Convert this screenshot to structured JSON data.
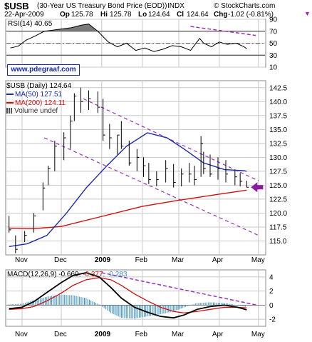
{
  "header": {
    "symbol": "$USB",
    "desc": "(30-Year US Treasury Bond Price (EOD))",
    "exchange": "INDX",
    "copyright": "© StockCharts.com",
    "date": "22-Apr-2009",
    "op_label": "Op",
    "op": "125.78",
    "hi_label": "Hi",
    "hi": "125.78",
    "lo_label": "Lo",
    "lo": "124.64",
    "cl_label": "Cl",
    "cl": "124.64",
    "chg_label": "Chg",
    "chg": "-1.02 (-0.81%)"
  },
  "watermark": "www.pdegraaf.com",
  "colors": {
    "price_bar": "#000000",
    "ma50": "#1a2aa8",
    "ma200": "#d01010",
    "trend": "#9b30c0",
    "arrow": "#8a1aa0",
    "rsi_fill": "#7a7a7a",
    "hist": "#3a8fc0",
    "grid": "#c8c8c8"
  },
  "chart_data": [
    {
      "type": "line",
      "title": "RSI(14) 40.65",
      "ylim": [
        10,
        90
      ],
      "y_ticks": [
        "10",
        "30",
        "50",
        "70",
        "90"
      ],
      "overbought": 70,
      "oversold": 30,
      "center": 50,
      "x_months": [
        "Nov",
        "Dec",
        "2009",
        "Feb",
        "Mar",
        "Apr",
        "May"
      ],
      "x": [
        "2008-10-23",
        "2008-10-29",
        "2008-11-04",
        "2008-11-11",
        "2008-11-18",
        "2008-11-25",
        "2008-12-02",
        "2008-12-09",
        "2008-12-16",
        "2008-12-22",
        "2008-12-29",
        "2009-01-06",
        "2009-01-13",
        "2009-01-20",
        "2009-01-27",
        "2009-02-03",
        "2009-02-10",
        "2009-02-17",
        "2009-02-24",
        "2009-03-03",
        "2009-03-10",
        "2009-03-17",
        "2009-03-20",
        "2009-03-26",
        "2009-04-01",
        "2009-04-07",
        "2009-04-14",
        "2009-04-20",
        "2009-04-22"
      ],
      "values": [
        42,
        45,
        55,
        62,
        70,
        72,
        74,
        76,
        80,
        82,
        70,
        52,
        44,
        50,
        38,
        42,
        36,
        40,
        46,
        44,
        38,
        58,
        50,
        44,
        52,
        48,
        50,
        44,
        40.65
      ],
      "trendline": {
        "x": [
          "2009-03-10",
          "2009-04-29"
        ],
        "y": [
          78,
          63
        ]
      }
    },
    {
      "type": "bar",
      "title": "$USB (Daily) 124.64",
      "ylim": [
        112.5,
        143.75
      ],
      "y_ticks": [
        "115.0",
        "117.5",
        "120.0",
        "122.5",
        "125.0",
        "127.5",
        "130.0",
        "132.5",
        "135.0",
        "137.5",
        "140.0",
        "142.5"
      ],
      "x_months": [
        "Nov",
        "Dec",
        "2009",
        "Feb",
        "Mar",
        "Apr",
        "May"
      ],
      "legend": [
        {
          "name": "$USB (Daily) 124.64",
          "color": "#000000"
        },
        {
          "name": "MA(50) 127.51",
          "color": "#1a2aa8"
        },
        {
          "name": "MA(200) 124.11",
          "color": "#d01010"
        },
        {
          "name": "Volume undef",
          "color": "#555555"
        }
      ],
      "ohlc": {
        "x": [
          "2008-10-22",
          "2008-10-27",
          "2008-11-03",
          "2008-11-10",
          "2008-11-17",
          "2008-11-21",
          "2008-11-26",
          "2008-12-03",
          "2008-12-08",
          "2008-12-11",
          "2008-12-16",
          "2008-12-22",
          "2008-12-29",
          "2009-01-02",
          "2009-01-07",
          "2009-01-13",
          "2009-01-16",
          "2009-01-22",
          "2009-01-28",
          "2009-02-02",
          "2009-02-06",
          "2009-02-12",
          "2009-02-19",
          "2009-02-25",
          "2009-03-03",
          "2009-03-09",
          "2009-03-13",
          "2009-03-18",
          "2009-03-20",
          "2009-03-25",
          "2009-03-31",
          "2009-04-06",
          "2009-04-13",
          "2009-04-17",
          "2009-04-22"
        ],
        "high": [
          119.5,
          116.0,
          116.8,
          120.0,
          125.5,
          128.5,
          133.0,
          134.5,
          137.5,
          141.5,
          142.5,
          142.0,
          141.8,
          140.5,
          136.0,
          134.0,
          136.5,
          133.0,
          131.5,
          130.0,
          129.0,
          127.5,
          129.5,
          128.8,
          128.0,
          129.0,
          128.5,
          133.8,
          131.0,
          130.5,
          130.0,
          129.5,
          127.6,
          127.2,
          125.8
        ],
        "low": [
          116.5,
          112.8,
          114.8,
          116.5,
          120.5,
          125.0,
          127.5,
          129.5,
          131.5,
          136.5,
          138.0,
          138.5,
          138.0,
          133.0,
          131.5,
          130.5,
          131.5,
          128.5,
          127.5,
          126.5,
          125.2,
          124.8,
          125.5,
          124.6,
          124.8,
          125.5,
          125.0,
          126.5,
          127.0,
          126.5,
          126.0,
          125.5,
          125.0,
          124.8,
          124.6
        ],
        "close": [
          117.0,
          113.5,
          116.0,
          119.5,
          124.5,
          128.0,
          132.0,
          133.5,
          136.5,
          141.0,
          140.0,
          140.5,
          139.0,
          134.0,
          133.5,
          134.0,
          132.0,
          129.0,
          130.0,
          128.5,
          126.0,
          126.0,
          128.0,
          125.5,
          127.0,
          127.0,
          126.0,
          132.5,
          128.0,
          127.0,
          128.0,
          127.0,
          126.5,
          125.7,
          124.64
        ]
      },
      "ma50": {
        "x": [
          "2008-10-22",
          "2008-11-05",
          "2008-11-20",
          "2008-12-05",
          "2008-12-20",
          "2009-01-05",
          "2009-01-20",
          "2009-02-05",
          "2009-02-20",
          "2009-03-05",
          "2009-03-20",
          "2009-04-05",
          "2009-04-20",
          "2009-04-22"
        ],
        "y": [
          114.0,
          114.5,
          116.0,
          120.0,
          124.5,
          128.5,
          132.0,
          134.4,
          133.5,
          131.5,
          129.0,
          127.8,
          127.6,
          127.51
        ]
      },
      "ma200": {
        "x": [
          "2008-10-22",
          "2008-11-10",
          "2008-12-01",
          "2009-01-01",
          "2009-02-01",
          "2009-03-01",
          "2009-04-01",
          "2009-04-22"
        ],
        "y": [
          117.3,
          117.2,
          117.6,
          119.4,
          121.2,
          122.3,
          123.4,
          124.11
        ]
      },
      "upper_trend": {
        "x": [
          "2008-12-18",
          "2009-05-01"
        ],
        "y": [
          140.5,
          125.8
        ]
      },
      "lower_trend": {
        "x": [
          "2008-11-18",
          "2009-05-01"
        ],
        "y": [
          133.5,
          116.0
        ]
      },
      "marker": {
        "x": "2009-04-22",
        "y": 124.64,
        "shape": "arrow-left"
      }
    },
    {
      "type": "line",
      "title": "MACD(12,26,9)",
      "ylim": [
        -3,
        5
      ],
      "y_ticks": [
        "-2",
        "0",
        "2",
        "4"
      ],
      "x_months": [
        "Nov",
        "Dec",
        "2009",
        "Feb",
        "Mar",
        "Apr",
        "May"
      ],
      "legend": [
        {
          "name": "MACD(12,26,9)",
          "color": "#000000"
        },
        {
          "name": "-0.660",
          "color": "#000000"
        },
        {
          "name": "-0.377",
          "color": "#d01010"
        },
        {
          "name": "-0.283",
          "color": "#3a8fc0"
        }
      ],
      "x": [
        "2008-10-22",
        "2008-11-01",
        "2008-11-10",
        "2008-11-20",
        "2008-12-01",
        "2008-12-10",
        "2008-12-20",
        "2008-12-30",
        "2009-01-08",
        "2009-01-16",
        "2009-01-26",
        "2009-02-05",
        "2009-02-15",
        "2009-02-25",
        "2009-03-05",
        "2009-03-15",
        "2009-03-25",
        "2009-04-05",
        "2009-04-15",
        "2009-04-22"
      ],
      "series": [
        {
          "values": [
            -0.5,
            -0.3,
            0.5,
            1.8,
            3.2,
            4.2,
            4.6,
            4.0,
            2.5,
            1.0,
            -0.3,
            -1.0,
            -1.6,
            -1.8,
            -1.4,
            -0.6,
            -0.2,
            0.0,
            -0.3,
            -0.66
          ]
        },
        {
          "values": [
            -0.6,
            -0.5,
            -0.2,
            0.6,
            1.7,
            2.8,
            3.6,
            3.9,
            3.6,
            2.8,
            1.6,
            0.6,
            -0.3,
            -0.9,
            -1.1,
            -0.9,
            -0.6,
            -0.3,
            -0.3,
            -0.377
          ]
        },
        {
          "values": [
            0.1,
            0.2,
            0.7,
            1.2,
            1.5,
            1.4,
            1.0,
            0.1,
            -1.1,
            -1.8,
            -1.9,
            -1.6,
            -1.3,
            -0.9,
            -0.3,
            0.3,
            0.4,
            0.3,
            0.0,
            -0.283
          ]
        }
      ],
      "trendline": {
        "x": [
          "2009-01-01",
          "2009-04-30"
        ],
        "y": [
          4.6,
          0.0
        ]
      }
    }
  ]
}
